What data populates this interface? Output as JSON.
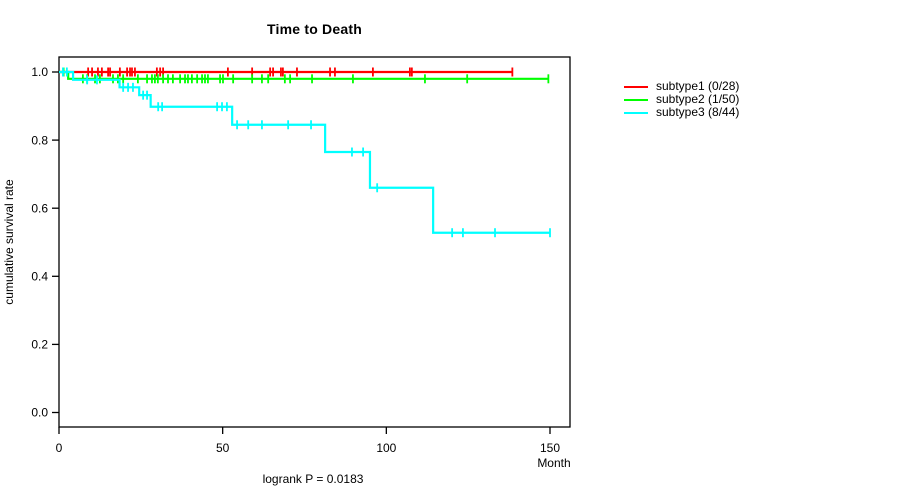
{
  "chart_data": {
    "type": "line",
    "variant": "kaplan-meier-step",
    "title": "Time to Death",
    "xlabel": "Month",
    "ylabel": "cumulative survival rate",
    "annotation": "logrank P = 0.0183",
    "xlim": [
      0,
      156
    ],
    "ylim": [
      -0.04,
      1.04
    ],
    "x_ticks": [
      0,
      50,
      100,
      150
    ],
    "x_tick_labels": [
      "0",
      "50",
      "100",
      "150"
    ],
    "y_ticks": [
      0.0,
      0.2,
      0.4,
      0.6,
      0.8,
      1.0
    ],
    "y_tick_labels": [
      "0.0",
      "0.2",
      "0.4",
      "0.6",
      "0.8",
      "1.0"
    ],
    "grid": false,
    "legend_position": "right-outside",
    "axis_color": "#000000",
    "series": [
      {
        "name": "subtype1",
        "label": "subtype1 (0/28)",
        "color": "#ff0000",
        "steps": [
          [
            0,
            1.0
          ]
        ],
        "end_month": 138.5,
        "censor_marks": [
          [
            8.9,
            1.0
          ],
          [
            10.1,
            1.0
          ],
          [
            11.9,
            1.0
          ],
          [
            13.1,
            1.0
          ],
          [
            15.0,
            1.0
          ],
          [
            15.6,
            1.0
          ],
          [
            18.6,
            1.0
          ],
          [
            20.8,
            1.0
          ],
          [
            21.7,
            1.0
          ],
          [
            22.3,
            1.0
          ],
          [
            23.2,
            1.0
          ],
          [
            29.9,
            1.0
          ],
          [
            30.9,
            1.0
          ],
          [
            31.8,
            1.0
          ],
          [
            51.6,
            1.0
          ],
          [
            59.0,
            1.0
          ],
          [
            64.5,
            1.0
          ],
          [
            65.4,
            1.0
          ],
          [
            67.8,
            1.0
          ],
          [
            68.4,
            1.0
          ],
          [
            72.7,
            1.0
          ],
          [
            82.8,
            1.0
          ],
          [
            84.3,
            1.0
          ],
          [
            95.9,
            1.0
          ],
          [
            107.2,
            1.0
          ],
          [
            107.8,
            1.0
          ],
          [
            138.5,
            1.0
          ]
        ]
      },
      {
        "name": "subtype2",
        "label": "subtype2 (1/50)",
        "color": "#00ff00",
        "steps": [
          [
            0,
            1.0
          ],
          [
            2.8,
            0.98
          ]
        ],
        "end_month": 149.5,
        "censor_marks": [
          [
            1.4,
            1.0
          ],
          [
            7.3,
            0.98
          ],
          [
            8.6,
            0.98
          ],
          [
            11.0,
            0.98
          ],
          [
            12.5,
            0.98
          ],
          [
            16.5,
            0.98
          ],
          [
            18.0,
            0.98
          ],
          [
            19.6,
            0.98
          ],
          [
            24.1,
            0.98
          ],
          [
            26.9,
            0.98
          ],
          [
            28.4,
            0.98
          ],
          [
            29.3,
            0.98
          ],
          [
            30.2,
            0.98
          ],
          [
            31.8,
            0.98
          ],
          [
            33.3,
            0.98
          ],
          [
            34.8,
            0.98
          ],
          [
            37.0,
            0.98
          ],
          [
            38.5,
            0.98
          ],
          [
            39.4,
            0.98
          ],
          [
            40.6,
            0.98
          ],
          [
            42.2,
            0.98
          ],
          [
            43.7,
            0.98
          ],
          [
            44.6,
            0.98
          ],
          [
            45.5,
            0.98
          ],
          [
            49.2,
            0.98
          ],
          [
            50.1,
            0.98
          ],
          [
            53.2,
            0.98
          ],
          [
            59.0,
            0.98
          ],
          [
            62.0,
            0.98
          ],
          [
            63.9,
            0.98
          ],
          [
            69.0,
            0.98
          ],
          [
            70.6,
            0.98
          ],
          [
            77.3,
            0.98
          ],
          [
            89.8,
            0.98
          ],
          [
            111.8,
            0.98
          ],
          [
            124.7,
            0.98
          ],
          [
            149.5,
            0.98
          ]
        ]
      },
      {
        "name": "subtype3",
        "label": "subtype3 (8/44)",
        "color": "#00ffff",
        "steps": [
          [
            0,
            1.0
          ],
          [
            4.3,
            0.977
          ],
          [
            18.5,
            0.955
          ],
          [
            24.5,
            0.932
          ],
          [
            28.0,
            0.898
          ],
          [
            52.9,
            0.845
          ],
          [
            81.3,
            0.765
          ],
          [
            95.0,
            0.66
          ],
          [
            114.3,
            0.528
          ]
        ],
        "end_month": 150.0,
        "censor_marks": [
          [
            1.2,
            1.0
          ],
          [
            2.4,
            1.0
          ],
          [
            8.6,
            0.977
          ],
          [
            11.6,
            0.977
          ],
          [
            19.6,
            0.955
          ],
          [
            21.1,
            0.955
          ],
          [
            22.6,
            0.955
          ],
          [
            25.7,
            0.932
          ],
          [
            26.9,
            0.932
          ],
          [
            30.3,
            0.898
          ],
          [
            31.5,
            0.898
          ],
          [
            48.3,
            0.898
          ],
          [
            49.8,
            0.898
          ],
          [
            51.3,
            0.898
          ],
          [
            54.4,
            0.845
          ],
          [
            57.8,
            0.845
          ],
          [
            62.0,
            0.845
          ],
          [
            70.0,
            0.845
          ],
          [
            77.0,
            0.845
          ],
          [
            89.5,
            0.765
          ],
          [
            92.9,
            0.765
          ],
          [
            97.2,
            0.66
          ],
          [
            120.1,
            0.528
          ],
          [
            123.4,
            0.528
          ],
          [
            133.2,
            0.528
          ],
          [
            150.0,
            0.528
          ]
        ]
      }
    ]
  }
}
